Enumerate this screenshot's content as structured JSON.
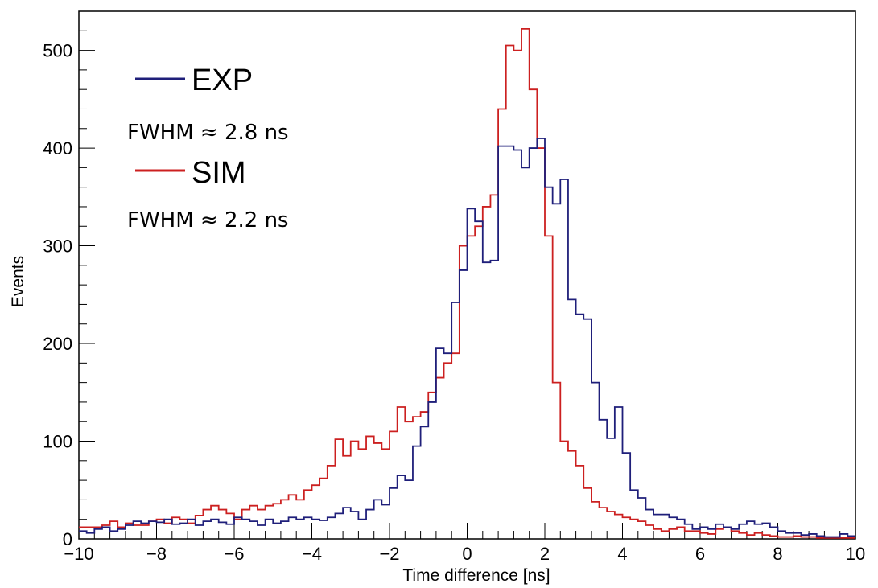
{
  "chart_data": {
    "type": "line",
    "title": "",
    "xlabel": "Time difference [ns]",
    "ylabel": "Events",
    "xlim": [
      -10,
      10
    ],
    "ylim": [
      0,
      540
    ],
    "x_ticks": [
      -10,
      -8,
      -6,
      -4,
      -2,
      0,
      2,
      4,
      6,
      8,
      10
    ],
    "x_tick_labels": [
      "−10",
      "−8",
      "−6",
      "−4",
      "−2",
      "0",
      "2",
      "4",
      "6",
      "8",
      "10"
    ],
    "y_ticks": [
      0,
      100,
      200,
      300,
      400,
      500
    ],
    "y_tick_labels": [
      "0",
      "100",
      "200",
      "300",
      "400",
      "500"
    ],
    "grid": false,
    "legend_position": "top-left",
    "bin_edges_start": -10,
    "bin_width": 0.2,
    "series": [
      {
        "name": "EXP",
        "color": "#1f1f7a",
        "values": [
          8,
          6,
          10,
          12,
          8,
          10,
          14,
          18,
          16,
          18,
          17,
          20,
          15,
          16,
          20,
          14,
          18,
          20,
          17,
          15,
          22,
          20,
          18,
          14,
          20,
          16,
          18,
          22,
          20,
          22,
          20,
          19,
          22,
          26,
          32,
          28,
          20,
          30,
          40,
          35,
          52,
          65,
          60,
          95,
          115,
          140,
          195,
          190,
          242,
          275,
          338,
          325,
          283,
          285,
          402,
          402,
          398,
          380,
          400,
          410,
          360,
          343,
          368,
          245,
          230,
          225,
          160,
          122,
          103,
          135,
          88,
          50,
          42,
          30,
          25,
          25,
          22,
          20,
          15,
          10,
          12,
          10,
          15,
          12,
          10,
          15,
          18,
          15,
          16,
          12,
          8,
          6,
          6,
          4,
          5,
          3,
          2,
          2,
          5,
          3
        ],
        "display_values": []
      },
      {
        "name": "SIM",
        "color": "#cc2020",
        "values": [
          12,
          12,
          12,
          14,
          18,
          12,
          16,
          14,
          14,
          18,
          20,
          16,
          22,
          20,
          16,
          24,
          30,
          34,
          30,
          26,
          20,
          30,
          34,
          30,
          34,
          36,
          40,
          45,
          40,
          50,
          55,
          62,
          75,
          102,
          85,
          100,
          92,
          105,
          98,
          92,
          110,
          135,
          120,
          125,
          130,
          150,
          165,
          180,
          190,
          300,
          310,
          320,
          340,
          352,
          440,
          505,
          500,
          522,
          460,
          400,
          310,
          160,
          100,
          90,
          75,
          52,
          38,
          32,
          28,
          25,
          22,
          20,
          18,
          14,
          10,
          8,
          10,
          12,
          8,
          8,
          6,
          5,
          10,
          12,
          8,
          6,
          4,
          6,
          4,
          3,
          2,
          2,
          3,
          2,
          2,
          1,
          1,
          1,
          1,
          1
        ],
        "display_values": []
      }
    ],
    "annotations": [
      "FWHM ≈ 2.8 ns",
      "FWHM ≈ 2.2 ns"
    ]
  }
}
